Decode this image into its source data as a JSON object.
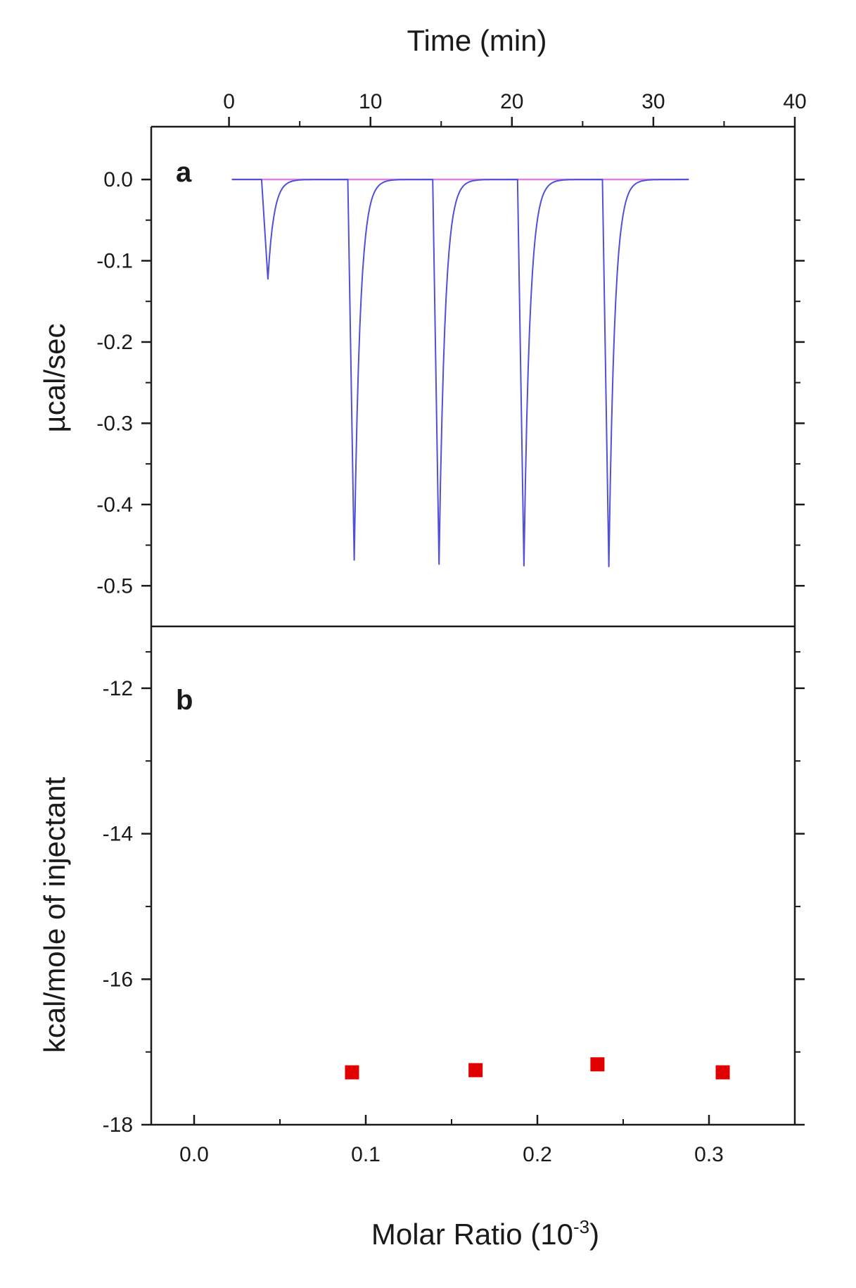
{
  "colors": {
    "trace": "#5050d8",
    "baseline": "#e080e0",
    "points": "#e00000",
    "axes": "#1a1a1a"
  },
  "chart_data": [
    {
      "type": "line",
      "panel_label": "a",
      "xlabel": "Time (min)",
      "ylabel": "µcal/sec",
      "xlim": [
        -5.5,
        40
      ],
      "ylim": [
        -0.55,
        0.065
      ],
      "x_ticks": [
        0,
        10,
        20,
        30,
        40
      ],
      "x_tick_labels": [
        "0",
        "10",
        "20",
        "30",
        "40"
      ],
      "y_ticks": [
        0.0,
        -0.1,
        -0.2,
        -0.3,
        -0.4,
        -0.5
      ],
      "y_tick_labels": [
        "0.0",
        "-0.1",
        "-0.2",
        "-0.3",
        "-0.4",
        "-0.5"
      ],
      "grid": false,
      "series": [
        {
          "role": "raw heat trace",
          "baseline_x_range": [
            0.2,
            32.5
          ],
          "injections": [
            {
              "time": 2.3,
              "peak": -0.123
            },
            {
              "time": 8.4,
              "peak": -0.469
            },
            {
              "time": 14.4,
              "peak": -0.474
            },
            {
              "time": 20.4,
              "peak": -0.476
            },
            {
              "time": 26.4,
              "peak": -0.477
            }
          ]
        },
        {
          "role": "baseline",
          "x": [
            0.2,
            32.5
          ],
          "y": [
            0.0,
            0.0
          ]
        }
      ]
    },
    {
      "type": "scatter",
      "panel_label": "b",
      "xlabel": "Molar Ratio (10",
      "xlabel_superscript": "-3",
      "xlabel_suffix": ")",
      "ylabel": "kcal/mole of injectant",
      "xlim": [
        -0.025,
        0.35
      ],
      "ylim": [
        -18,
        -11.15
      ],
      "x_ticks": [
        0.0,
        0.1,
        0.2,
        0.3
      ],
      "x_tick_labels": [
        "0.0",
        "0.1",
        "0.2",
        "0.3"
      ],
      "y_ticks": [
        -12,
        -14,
        -16,
        -18
      ],
      "y_tick_labels": [
        "-12",
        "-14",
        "-16",
        "-18"
      ],
      "grid": false,
      "series": [
        {
          "marker": "square",
          "x": [
            0.092,
            0.164,
            0.235,
            0.308
          ],
          "y": [
            -17.28,
            -17.25,
            -17.17,
            -17.28
          ]
        }
      ]
    }
  ]
}
